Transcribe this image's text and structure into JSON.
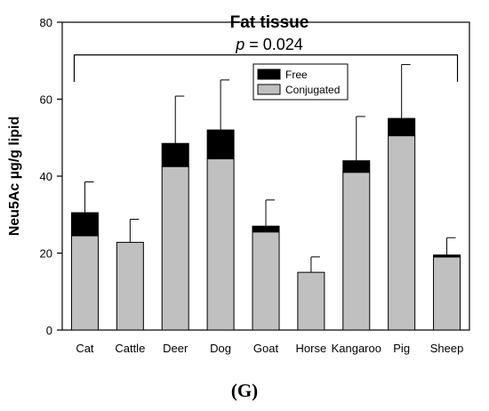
{
  "chart_data": {
    "type": "bar",
    "stacked": true,
    "title": "Fat tissue",
    "annotation": {
      "p_label": "p",
      "p_value": " = 0.024"
    },
    "panel_label": "(G)",
    "ylabel": "Neu5Ac µg/g lipid",
    "xlabel": "",
    "ylim": [
      0,
      80
    ],
    "yticks": [
      "0",
      "20",
      "40",
      "60",
      "80"
    ],
    "categories": [
      "Cat",
      "Cattle",
      "Deer",
      "Dog",
      "Goat",
      "Horse",
      "Kangaroo",
      "Pig",
      "Sheep"
    ],
    "series": [
      {
        "name": "Conjugated",
        "color": "#c0c0c0",
        "values": [
          24.5,
          22.8,
          42.5,
          44.5,
          25.5,
          15.0,
          41.0,
          50.5,
          19.0
        ]
      },
      {
        "name": "Free",
        "color": "#000000",
        "values": [
          6.0,
          0.0,
          6.0,
          7.5,
          1.5,
          0.0,
          3.0,
          4.5,
          0.5
        ]
      }
    ],
    "error_bars_upper": [
      38.5,
      28.8,
      60.8,
      65.0,
      33.8,
      19.0,
      55.5,
      69.0,
      24.0
    ],
    "legend": {
      "position": "top-center",
      "entries": [
        "Free",
        "Conjugated"
      ]
    }
  }
}
